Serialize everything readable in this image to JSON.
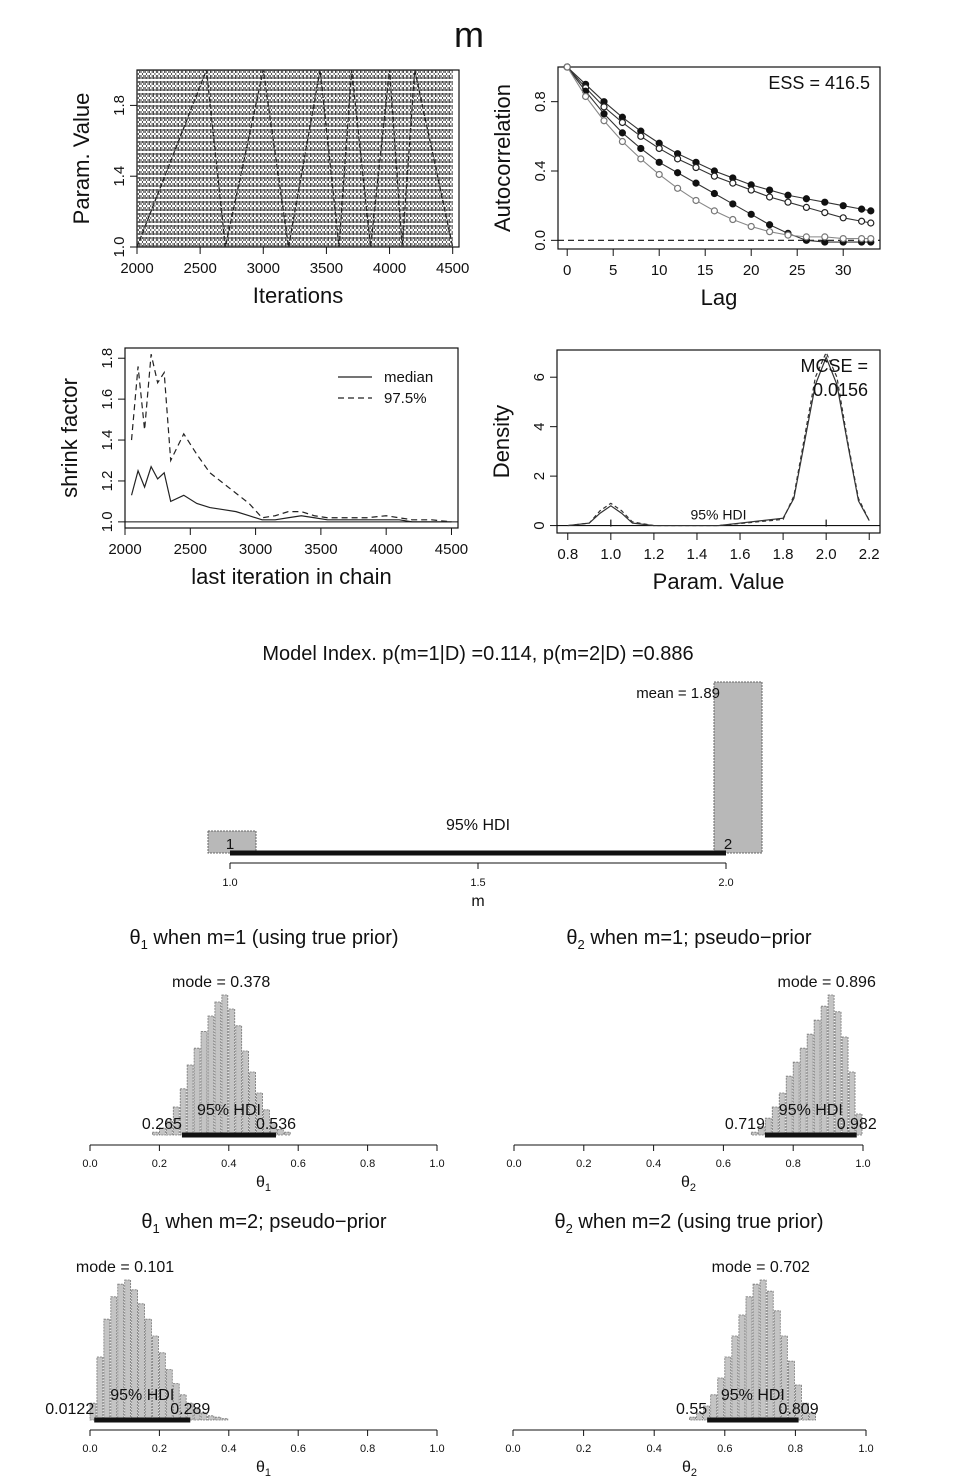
{
  "page_title": "m",
  "chart_data": [
    {
      "type": "line",
      "id": "trace",
      "xlabel": "Iterations",
      "ylabel": "Param. Value",
      "xlim": [
        2000,
        4550
      ],
      "ylim": [
        1.0,
        2.0
      ],
      "x_ticks": [
        "2000",
        "2500",
        "3000",
        "3500",
        "4000",
        "4500"
      ],
      "y_ticks": [
        "1.0",
        "1.4",
        "1.8"
      ],
      "series": [
        {
          "values_note_free": true,
          "x": [
            2000,
            2550,
            2700,
            3000,
            3200,
            3450,
            3600,
            3700,
            3850,
            4000,
            4100,
            4200,
            4500
          ],
          "y": [
            1.0,
            2.0,
            1.0,
            2.0,
            1.0,
            2.0,
            1.0,
            2.0,
            1.0,
            2.0,
            1.0,
            2.0,
            1.0
          ]
        }
      ]
    },
    {
      "type": "line",
      "id": "autocorrelation",
      "xlabel": "Lag",
      "ylabel": "Autocorrelation",
      "xlim": [
        -1,
        34
      ],
      "ylim": [
        -0.05,
        1.0
      ],
      "x_ticks": [
        "0",
        "5",
        "10",
        "15",
        "20",
        "25",
        "30"
      ],
      "y_ticks": [
        "0.0",
        "0.4",
        "0.8"
      ],
      "annotation": "ESS = 416.5",
      "series": [
        {
          "x": [
            0,
            2,
            4,
            6,
            8,
            10,
            12,
            14,
            16,
            18,
            20,
            22,
            24,
            26,
            28,
            30,
            32,
            33
          ],
          "y": [
            1.0,
            0.9,
            0.8,
            0.71,
            0.63,
            0.56,
            0.5,
            0.45,
            0.4,
            0.36,
            0.32,
            0.29,
            0.26,
            0.24,
            0.22,
            0.2,
            0.18,
            0.17
          ]
        },
        {
          "x": [
            0,
            2,
            4,
            6,
            8,
            10,
            12,
            14,
            16,
            18,
            20,
            22,
            24,
            26,
            28,
            30,
            32,
            33
          ],
          "y": [
            1.0,
            0.88,
            0.77,
            0.68,
            0.6,
            0.53,
            0.47,
            0.42,
            0.37,
            0.33,
            0.29,
            0.25,
            0.22,
            0.19,
            0.16,
            0.13,
            0.11,
            0.1
          ]
        },
        {
          "x": [
            0,
            2,
            4,
            6,
            8,
            10,
            12,
            14,
            16,
            18,
            20,
            22,
            24,
            26,
            28,
            30,
            32,
            33
          ],
          "y": [
            1.0,
            0.86,
            0.73,
            0.62,
            0.53,
            0.45,
            0.39,
            0.33,
            0.27,
            0.21,
            0.15,
            0.09,
            0.04,
            0.0,
            -0.01,
            -0.01,
            -0.01,
            -0.01
          ]
        },
        {
          "x": [
            0,
            2,
            4,
            6,
            8,
            10,
            12,
            14,
            16,
            18,
            20,
            22,
            24,
            26,
            28,
            30,
            32,
            33
          ],
          "y": [
            1.0,
            0.83,
            0.69,
            0.57,
            0.47,
            0.38,
            0.3,
            0.23,
            0.17,
            0.12,
            0.08,
            0.05,
            0.03,
            0.02,
            0.02,
            0.01,
            0.01,
            0.01
          ]
        }
      ]
    },
    {
      "type": "line",
      "id": "shrink",
      "xlabel": "last iteration in chain",
      "ylabel": "shrink factor",
      "xlim": [
        2000,
        4550
      ],
      "ylim": [
        0.97,
        1.85
      ],
      "x_ticks": [
        "2000",
        "2500",
        "3000",
        "3500",
        "4000",
        "4500"
      ],
      "y_ticks": [
        "1.0",
        "1.2",
        "1.4",
        "1.6",
        "1.8"
      ],
      "series": [
        {
          "name": "median",
          "x": [
            2050,
            2100,
            2150,
            2200,
            2250,
            2300,
            2350,
            2450,
            2550,
            2650,
            2750,
            2850,
            2950,
            3050,
            3150,
            3250,
            3350,
            3450,
            3550,
            3700,
            3850,
            4000,
            4100,
            4200,
            4350,
            4500
          ],
          "y": [
            1.13,
            1.25,
            1.17,
            1.27,
            1.21,
            1.24,
            1.1,
            1.13,
            1.09,
            1.07,
            1.06,
            1.05,
            1.03,
            1.01,
            1.01,
            1.02,
            1.03,
            1.02,
            1.01,
            1.01,
            1.01,
            1.01,
            1.01,
            1.0,
            1.0,
            1.0
          ]
        },
        {
          "name": "97.5%",
          "x": [
            2050,
            2100,
            2150,
            2200,
            2250,
            2300,
            2350,
            2450,
            2550,
            2650,
            2750,
            2850,
            2950,
            3050,
            3150,
            3250,
            3350,
            3450,
            3550,
            3700,
            3850,
            4000,
            4100,
            4200,
            4350,
            4500
          ],
          "y": [
            1.4,
            1.76,
            1.45,
            1.82,
            1.68,
            1.73,
            1.3,
            1.43,
            1.33,
            1.24,
            1.19,
            1.14,
            1.09,
            1.02,
            1.03,
            1.05,
            1.05,
            1.03,
            1.02,
            1.02,
            1.02,
            1.03,
            1.02,
            1.01,
            1.01,
            1.0
          ]
        }
      ]
    },
    {
      "type": "line",
      "id": "density",
      "xlabel": "Param. Value",
      "ylabel": "Density",
      "xlim": [
        0.75,
        2.25
      ],
      "ylim": [
        -0.3,
        7.1
      ],
      "x_ticks": [
        "0.8",
        "1.0",
        "1.2",
        "1.4",
        "1.6",
        "1.8",
        "2.0",
        "2.2"
      ],
      "y_ticks": [
        "0",
        "2",
        "4",
        "6"
      ],
      "annotation_line1": "MCSE =",
      "annotation_line2": "0.0156",
      "hdi_label": "95% HDI",
      "series": [
        {
          "x": [
            0.8,
            0.9,
            0.95,
            1.0,
            1.05,
            1.1,
            1.2,
            1.5,
            1.8,
            1.85,
            1.9,
            1.95,
            2.0,
            2.05,
            2.1,
            2.15,
            2.2
          ],
          "y": [
            0,
            0.1,
            0.5,
            0.8,
            0.5,
            0.1,
            0,
            0,
            0.3,
            1.1,
            3.4,
            5.7,
            6.8,
            5.7,
            3.3,
            1.0,
            0.2
          ]
        },
        {
          "x": [
            0.8,
            0.9,
            0.95,
            1.0,
            1.05,
            1.1,
            1.2,
            1.5,
            1.8,
            1.85,
            1.9,
            1.95,
            2.0,
            2.05,
            2.1,
            2.15,
            2.2
          ],
          "y": [
            0,
            0.1,
            0.6,
            0.9,
            0.6,
            0.15,
            0,
            0,
            0.25,
            1.2,
            3.6,
            6.0,
            7.0,
            6.0,
            3.4,
            1.1,
            0.2
          ]
        }
      ]
    },
    {
      "type": "bar",
      "id": "model-index",
      "title": "Model Index. p(m=1|D) =0.114, p(m=2|D) =0.886",
      "xlabel": "m",
      "categories": [
        "1",
        "2"
      ],
      "values": [
        0.114,
        0.886
      ],
      "x_ticks": [
        "1.0",
        "1.5",
        "2.0"
      ],
      "mean_label": "mean = 1.89",
      "hdi_label": "95% HDI",
      "hdi": [
        1.0,
        2.0
      ]
    },
    {
      "type": "bar",
      "id": "theta1-m1",
      "title_theta": "θ",
      "title_sub": "1",
      "title_rest": " when m=1 (using true prior)",
      "xlabel_theta": "θ",
      "xlabel_sub": "1",
      "x_ticks": [
        "0.0",
        "0.2",
        "0.4",
        "0.6",
        "0.8",
        "1.0"
      ],
      "mode_label": "mode = 0.378",
      "hdi_label": "95% HDI",
      "hdi_low_label": "0.265",
      "hdi_high_label": "0.536",
      "mode": 0.378,
      "hdi": [
        0.265,
        0.536
      ],
      "bin_centers": [
        0.19,
        0.21,
        0.23,
        0.25,
        0.27,
        0.29,
        0.31,
        0.33,
        0.35,
        0.37,
        0.39,
        0.41,
        0.43,
        0.45,
        0.47,
        0.49,
        0.51,
        0.53,
        0.55,
        0.57
      ],
      "counts": [
        0.02,
        0.05,
        0.1,
        0.2,
        0.33,
        0.5,
        0.62,
        0.74,
        0.85,
        0.95,
        1.0,
        0.9,
        0.78,
        0.6,
        0.45,
        0.3,
        0.18,
        0.09,
        0.04,
        0.02
      ]
    },
    {
      "type": "bar",
      "id": "theta2-m1",
      "title_theta": "θ",
      "title_sub": "2",
      "title_rest": " when m=1; pseudo−prior",
      "xlabel_theta": "θ",
      "xlabel_sub": "2",
      "x_ticks": [
        "0.0",
        "0.2",
        "0.4",
        "0.6",
        "0.8",
        "1.0"
      ],
      "mode_label": "mode = 0.896",
      "hdi_label": "95% HDI",
      "hdi_low_label": "0.719",
      "hdi_high_label": "0.982",
      "mode": 0.896,
      "hdi": [
        0.719,
        0.982
      ],
      "bin_centers": [
        0.69,
        0.71,
        0.73,
        0.75,
        0.77,
        0.79,
        0.81,
        0.83,
        0.85,
        0.87,
        0.89,
        0.91,
        0.93,
        0.95,
        0.97,
        0.99
      ],
      "counts": [
        0.02,
        0.06,
        0.12,
        0.2,
        0.3,
        0.42,
        0.52,
        0.62,
        0.72,
        0.82,
        0.92,
        1.0,
        0.88,
        0.7,
        0.45,
        0.15
      ]
    },
    {
      "type": "bar",
      "id": "theta1-m2",
      "title_theta": "θ",
      "title_sub": "1",
      "title_rest": " when m=2; pseudo−prior",
      "xlabel_theta": "θ",
      "xlabel_sub": "1",
      "x_ticks": [
        "0.0",
        "0.2",
        "0.4",
        "0.6",
        "0.8",
        "1.0"
      ],
      "mode_label": "mode = 0.101",
      "hdi_label": "95% HDI",
      "hdi_low_label": "0.0122",
      "hdi_high_label": "0.289",
      "mode": 0.101,
      "hdi": [
        0.0122,
        0.289
      ],
      "bin_centers": [
        0.01,
        0.03,
        0.05,
        0.07,
        0.09,
        0.11,
        0.13,
        0.15,
        0.17,
        0.19,
        0.21,
        0.23,
        0.25,
        0.27,
        0.29,
        0.31,
        0.33,
        0.35,
        0.37,
        0.39
      ],
      "counts": [
        0.12,
        0.45,
        0.72,
        0.88,
        0.97,
        1.0,
        0.93,
        0.83,
        0.72,
        0.6,
        0.48,
        0.36,
        0.26,
        0.18,
        0.12,
        0.08,
        0.05,
        0.03,
        0.02,
        0.01
      ]
    },
    {
      "type": "bar",
      "id": "theta2-m2",
      "title_theta": "θ",
      "title_sub": "2",
      "title_rest": " when m=2 (using true prior)",
      "xlabel_theta": "θ",
      "xlabel_sub": "2",
      "x_ticks": [
        "0.0",
        "0.2",
        "0.4",
        "0.6",
        "0.8",
        "1.0"
      ],
      "mode_label": "mode = 0.702",
      "hdi_label": "95% HDI",
      "hdi_low_label": "0.55",
      "hdi_high_label": "0.809",
      "mode": 0.702,
      "hdi": [
        0.55,
        0.809
      ],
      "bin_centers": [
        0.51,
        0.53,
        0.55,
        0.57,
        0.59,
        0.61,
        0.63,
        0.65,
        0.67,
        0.69,
        0.71,
        0.73,
        0.75,
        0.77,
        0.79,
        0.81,
        0.83,
        0.85
      ],
      "counts": [
        0.02,
        0.05,
        0.1,
        0.18,
        0.3,
        0.45,
        0.6,
        0.75,
        0.88,
        0.97,
        1.0,
        0.92,
        0.78,
        0.6,
        0.42,
        0.25,
        0.12,
        0.05
      ]
    }
  ]
}
